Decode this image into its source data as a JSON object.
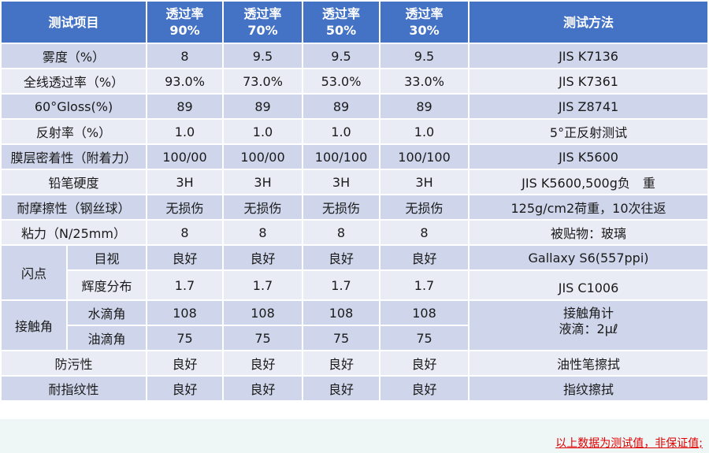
{
  "header": {
    "item": "测试项目",
    "col1": "透过率\n90%",
    "col2": "透过率\n70%",
    "col3": "透过率\n50%",
    "col4": "透过率\n30%",
    "method": "测试方法"
  },
  "rows": [
    {
      "item": "雾度（%）",
      "v": [
        "8",
        "9.5",
        "9.5",
        "9.5"
      ],
      "method": "JIS K7136"
    },
    {
      "item": "全线透过率（%）",
      "v": [
        "93.0%",
        "73.0%",
        "53.0%",
        "33.0%"
      ],
      "method": "JIS K7361"
    },
    {
      "item": "60°Gloss(%)",
      "v": [
        "89",
        "89",
        "89",
        "89"
      ],
      "method": "JIS Z8741"
    },
    {
      "item": "反射率（%）",
      "v": [
        "1.0",
        "1.0",
        "1.0",
        "1.0"
      ],
      "method": "5°正反射测试"
    },
    {
      "item": "膜层密着性（附着力）",
      "v": [
        "100/00",
        "100/00",
        "100/100",
        "100/100"
      ],
      "method": "JIS K5600"
    },
    {
      "item": "铅笔硬度",
      "v": [
        "3H",
        "3H",
        "3H",
        "3H"
      ],
      "method": "JIS K5600,500g负　重"
    },
    {
      "item": "耐摩擦性（钢丝球）",
      "v": [
        "无损伤",
        "无损伤",
        "无损伤",
        "无损伤"
      ],
      "method": "125g/cm2荷重，10次往返"
    },
    {
      "item": "粘力（N/25mm）",
      "v": [
        "8",
        "8",
        "8",
        "8"
      ],
      "method": "被贴物：玻璃"
    }
  ],
  "flash": {
    "group": "闪点",
    "sub1": "目视",
    "v1": [
      "良好",
      "良好",
      "良好",
      "良好"
    ],
    "m1": "Gallaxy S6(557ppi)",
    "sub2": "辉度分布",
    "v2": [
      "1.7",
      "1.7",
      "1.7",
      "1.7"
    ],
    "m2": "JIS C1006"
  },
  "contact": {
    "group": "接触角",
    "sub1": "水滴角",
    "v1": [
      "108",
      "108",
      "108",
      "108"
    ],
    "sub2": "油滴角",
    "v2": [
      "75",
      "75",
      "75",
      "75"
    ],
    "method_line1": "接触角计",
    "method_line2": "液滴：2μℓ"
  },
  "tail_rows": [
    {
      "item": "防污性",
      "v": [
        "良好",
        "良好",
        "良好",
        "良好"
      ],
      "method": "油性笔擦拭"
    },
    {
      "item": "耐指纹性",
      "v": [
        "良好",
        "良好",
        "良好",
        "良好"
      ],
      "method": "指纹擦拭"
    }
  ],
  "footnote": "以上数据为测试值，非保证值;"
}
